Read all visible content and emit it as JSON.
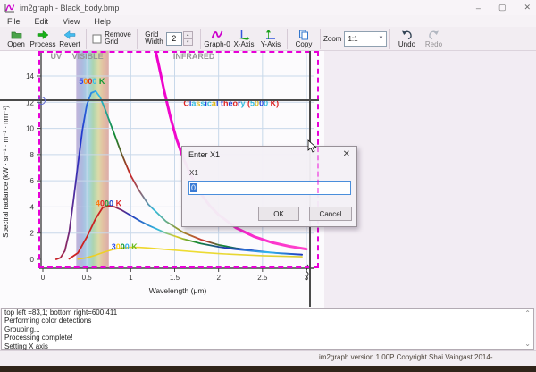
{
  "window": {
    "title": "im2graph - Black_body.bmp",
    "controls": {
      "minimize": "–",
      "maximize": "▢",
      "close": "✕"
    }
  },
  "menu": {
    "items": [
      "File",
      "Edit",
      "View",
      "Help"
    ]
  },
  "toolbar": {
    "open": "Open",
    "process": "Process",
    "revert": "Revert",
    "remove_grid_line1": "Remove",
    "remove_grid_line2": "Grid",
    "grid_width_line1": "Grid",
    "grid_width_line2": "Width",
    "grid_width_value": "2",
    "graph0": "Graph-0",
    "xaxis": "X-Axis",
    "yaxis": "Y-Axis",
    "copy": "Copy",
    "zoom_label": "Zoom",
    "zoom_value": "1:1",
    "undo": "Undo",
    "redo": "Redo"
  },
  "overlay": {
    "selection_color": "#e800d8",
    "crosshair_x_um": 3.04,
    "crosshair_y_value": 12.2
  },
  "dialog": {
    "title": "Enter X1",
    "close": "✕",
    "field_label": "X1",
    "value": "0",
    "ok_label": "OK",
    "cancel_label": "Cancel"
  },
  "log": {
    "lines": [
      "top left =83,1; bottom right=600,411",
      "Performing color detections",
      "Grouping...",
      "Processing complete!",
      "Setting X axis"
    ]
  },
  "status": "im2graph version 1.00P Copyright Shai Vaingast 2014-",
  "chart_data": {
    "type": "line",
    "title": "",
    "xlabel": "Wavelength (μm)",
    "ylabel": "Spectral radiance (kW · sr⁻¹ · m⁻² · nm⁻¹)",
    "xlim": [
      0,
      3
    ],
    "ylim": [
      0,
      15.9
    ],
    "xticks": [
      0,
      0.5,
      1,
      1.5,
      2,
      2.5,
      3
    ],
    "xtick_labels": [
      "0",
      "0.5",
      "1",
      "1.5",
      "2",
      "2.5",
      "3"
    ],
    "yticks": [
      0,
      2,
      4,
      6,
      8,
      10,
      12,
      14
    ],
    "grid": true,
    "grid_color": "#c8d8ea",
    "visible_band_um": [
      0.38,
      0.75
    ],
    "region_labels": [
      {
        "text": "UV",
        "x": 0.15
      },
      {
        "text": "VISIBLE",
        "x": 0.51
      },
      {
        "text": "INFRARED",
        "x": 1.72
      }
    ],
    "series": [
      {
        "name": "5000 K",
        "stroke_width": 1.8,
        "gradient": [
          [
            0,
            "#cc2222"
          ],
          [
            0.1,
            "#2233cc"
          ],
          [
            0.17,
            "#33bbee"
          ],
          [
            0.24,
            "#11882e"
          ],
          [
            0.3,
            "#cc2222"
          ],
          [
            0.4,
            "#33bbdd"
          ],
          [
            0.5,
            "#99992a"
          ],
          [
            0.6,
            "#cc3333"
          ],
          [
            0.68,
            "#118833"
          ],
          [
            0.78,
            "#2233bb"
          ],
          [
            0.9,
            "#33bbee"
          ],
          [
            1,
            "#33bbee"
          ]
        ],
        "points": [
          [
            0.15,
            0
          ],
          [
            0.2,
            0.12
          ],
          [
            0.25,
            0.65
          ],
          [
            0.3,
            2.1
          ],
          [
            0.35,
            4.6
          ],
          [
            0.4,
            7.3
          ],
          [
            0.45,
            9.9
          ],
          [
            0.5,
            11.8
          ],
          [
            0.55,
            12.7
          ],
          [
            0.6,
            12.85
          ],
          [
            0.65,
            12.4
          ],
          [
            0.7,
            11.6
          ],
          [
            0.8,
            9.8
          ],
          [
            0.9,
            8.0
          ],
          [
            1.0,
            6.4
          ],
          [
            1.1,
            5.2
          ],
          [
            1.2,
            4.2
          ],
          [
            1.4,
            2.9
          ],
          [
            1.6,
            2.05
          ],
          [
            1.8,
            1.5
          ],
          [
            2.0,
            1.1
          ],
          [
            2.2,
            0.85
          ],
          [
            2.4,
            0.66
          ],
          [
            2.7,
            0.45
          ],
          [
            2.95,
            0.35
          ]
        ]
      },
      {
        "name": "4000 K",
        "stroke_width": 1.8,
        "gradient": [
          [
            0,
            "#cc2222"
          ],
          [
            0.18,
            "#cc2222"
          ],
          [
            0.26,
            "#2233bb"
          ],
          [
            0.38,
            "#33bbdd"
          ],
          [
            0.46,
            "#ddcc22"
          ],
          [
            0.55,
            "#118833"
          ],
          [
            0.68,
            "#2233bb"
          ],
          [
            0.85,
            "#33bbee"
          ],
          [
            1,
            "#2233bb"
          ]
        ],
        "points": [
          [
            0.3,
            0.04
          ],
          [
            0.4,
            0.5
          ],
          [
            0.5,
            1.7
          ],
          [
            0.6,
            3.1
          ],
          [
            0.68,
            3.95
          ],
          [
            0.75,
            4.1
          ],
          [
            0.82,
            4.0
          ],
          [
            0.9,
            3.75
          ],
          [
            1.0,
            3.35
          ],
          [
            1.1,
            2.95
          ],
          [
            1.2,
            2.6
          ],
          [
            1.4,
            2.0
          ],
          [
            1.6,
            1.55
          ],
          [
            1.8,
            1.2
          ],
          [
            2.0,
            0.95
          ],
          [
            2.2,
            0.76
          ],
          [
            2.5,
            0.55
          ],
          [
            2.95,
            0.36
          ]
        ]
      },
      {
        "name": "3000 K",
        "stroke_width": 1.6,
        "gradient": [
          [
            0,
            "#eecc22"
          ],
          [
            0.5,
            "#eedd33"
          ],
          [
            1,
            "#ddcc33"
          ]
        ],
        "points": [
          [
            0.4,
            0.02
          ],
          [
            0.5,
            0.12
          ],
          [
            0.6,
            0.32
          ],
          [
            0.7,
            0.55
          ],
          [
            0.8,
            0.75
          ],
          [
            0.9,
            0.87
          ],
          [
            1.0,
            0.92
          ],
          [
            1.1,
            0.91
          ],
          [
            1.2,
            0.87
          ],
          [
            1.4,
            0.76
          ],
          [
            1.6,
            0.64
          ],
          [
            1.8,
            0.53
          ],
          [
            2.0,
            0.44
          ],
          [
            2.2,
            0.37
          ],
          [
            2.5,
            0.28
          ],
          [
            2.95,
            0.2
          ]
        ]
      },
      {
        "name": "Classical theory (5000 K)",
        "stroke_width": 3,
        "gradient": [
          [
            0,
            "#ee00cc"
          ],
          [
            1,
            "#ff44cc"
          ]
        ],
        "points": [
          [
            1.28,
            16
          ],
          [
            1.32,
            14.8
          ],
          [
            1.38,
            12.9
          ],
          [
            1.45,
            10.9
          ],
          [
            1.52,
            9.2
          ],
          [
            1.6,
            7.7
          ],
          [
            1.7,
            6.2
          ],
          [
            1.8,
            5.0
          ],
          [
            1.9,
            4.1
          ],
          [
            2.0,
            3.4
          ],
          [
            2.2,
            2.4
          ],
          [
            2.4,
            1.75
          ],
          [
            2.6,
            1.3
          ],
          [
            2.8,
            1.0
          ],
          [
            3.0,
            0.78
          ]
        ]
      }
    ],
    "annotations": [
      {
        "id": "label-5000k",
        "x": 0.41,
        "y": 13.4,
        "chars": [
          [
            "5",
            "#3344ee"
          ],
          [
            "0",
            "#ff8800"
          ],
          [
            "0",
            "#dd2222"
          ],
          [
            "0",
            "#33bbee"
          ],
          [
            " ",
            "#000000"
          ],
          [
            "K",
            "#119933"
          ]
        ]
      },
      {
        "id": "label-4000k",
        "x": 0.6,
        "y": 4.05,
        "chars": [
          [
            "4",
            "#ff7711"
          ],
          [
            "0",
            "#dd2222"
          ],
          [
            "0",
            "#119933"
          ],
          [
            "0",
            "#2244cc"
          ],
          [
            " ",
            "#000000"
          ],
          [
            "K",
            "#dd2222"
          ]
        ]
      },
      {
        "id": "label-3000k",
        "x": 0.78,
        "y": 0.75,
        "chars": [
          [
            "3",
            "#3355ee"
          ],
          [
            "0",
            "#ffcc00"
          ],
          [
            "0",
            "#119933"
          ],
          [
            "0",
            "#33aaee"
          ],
          [
            " ",
            "#000000"
          ],
          [
            "K",
            "#66bb22"
          ]
        ]
      },
      {
        "id": "label-classical",
        "x": 1.6,
        "y": 11.7,
        "chars": [
          [
            "C",
            "#dd2222"
          ],
          [
            "l",
            "#2244dd"
          ],
          [
            "a",
            "#33bbdd"
          ],
          [
            "s",
            "#ddbb22"
          ],
          [
            "s",
            "#33bbdd"
          ],
          [
            "i",
            "#2244dd"
          ],
          [
            "c",
            "#33bbdd"
          ],
          [
            "a",
            "#ddbb22"
          ],
          [
            "l",
            "#2244dd"
          ],
          [
            " ",
            "#000000"
          ],
          [
            "t",
            "#2244dd"
          ],
          [
            "h",
            "#dd2222"
          ],
          [
            "e",
            "#2244dd"
          ],
          [
            "o",
            "#dd2222"
          ],
          [
            "r",
            "#2244dd"
          ],
          [
            "y",
            "#33bbdd"
          ],
          [
            " ",
            "#000000"
          ],
          [
            "(",
            "#dd2222"
          ],
          [
            "5",
            "#33bbdd"
          ],
          [
            "0",
            "#ddbb22"
          ],
          [
            "0",
            "#2244dd"
          ],
          [
            "0",
            "#33bbdd"
          ],
          [
            " ",
            "#000000"
          ],
          [
            "K",
            "#dd2222"
          ],
          [
            ")",
            "#dd2222"
          ]
        ]
      }
    ]
  }
}
